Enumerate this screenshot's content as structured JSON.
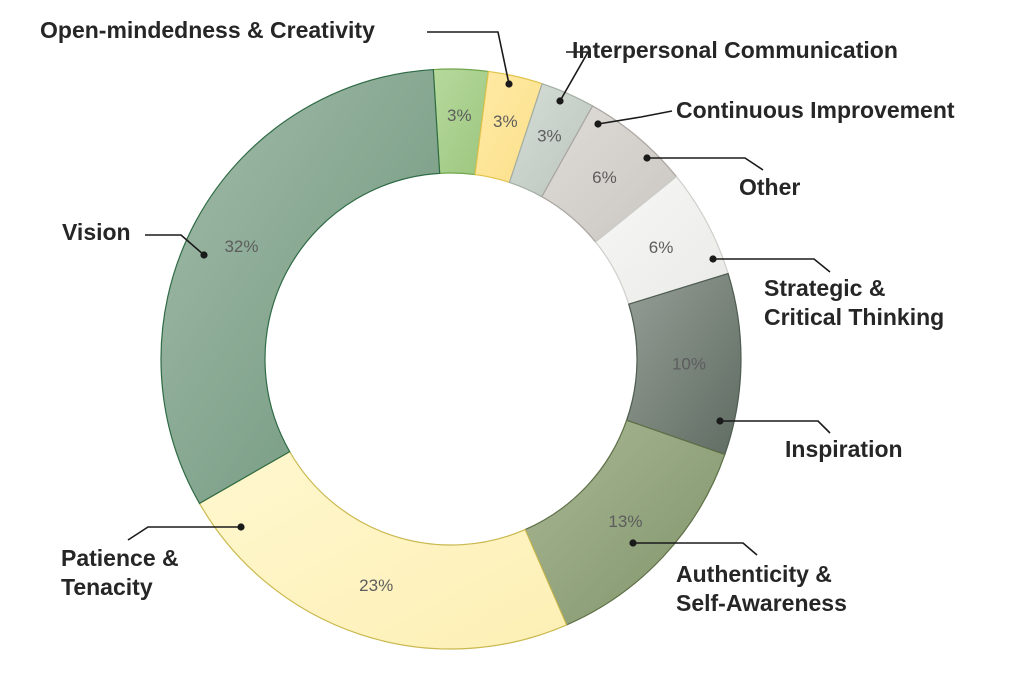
{
  "chart_data": {
    "type": "pie",
    "variant": "donut",
    "slices": [
      {
        "label": "Open-mindedness & Creativity",
        "value": 3,
        "value_label": "3%",
        "color": "#a8d08d",
        "edge": "#6fa64b"
      },
      {
        "label": "Interpersonal Communication",
        "value": 3,
        "value_label": "3%",
        "color": "#ffe699",
        "edge": "#e0c24a"
      },
      {
        "label": "Continuous Improvement",
        "value": 3,
        "value_label": "3%",
        "color": "#c9d3ca",
        "edge": "#a3ada4"
      },
      {
        "label": "Other",
        "value": 6,
        "value_label": "6%",
        "color": "#d6d3cf",
        "edge": "#aaa6a1"
      },
      {
        "label": "Strategic & Critical Thinking",
        "value": 6,
        "value_label": "6%",
        "color": "#f3f3f1",
        "edge": "#cfcfcb"
      },
      {
        "label": "Inspiration",
        "value": 10,
        "value_label": "10%",
        "color": "#7f8d82",
        "edge": "#4e5c51"
      },
      {
        "label": "Authenticity & Self-Awareness",
        "value": 13,
        "value_label": "13%",
        "color": "#96a882",
        "edge": "#5f7048"
      },
      {
        "label": "Patience & Tenacity",
        "value": 23,
        "value_label": "23%",
        "color": "#fff4c2",
        "edge": "#c9b84e"
      },
      {
        "label": "Vision",
        "value": 32,
        "value_label": "32%",
        "color": "#88a994",
        "edge": "#2f6b45"
      }
    ],
    "legend": "callout labels with leader lines"
  }
}
